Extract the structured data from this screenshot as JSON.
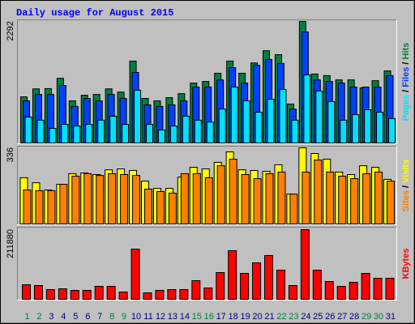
{
  "chart_data": [
    {
      "type": "bar",
      "title": "Daily usage for August 2015",
      "title_color": "#0000ff",
      "ylim": [
        0,
        2292
      ],
      "yticks": [
        2292
      ],
      "legend_separator": " / ",
      "series": [
        {
          "name": "Hits",
          "color": "#008040",
          "values": [
            870,
            1020,
            1025,
            1220,
            795,
            900,
            915,
            1020,
            960,
            1545,
            840,
            795,
            855,
            930,
            1130,
            1160,
            1315,
            1545,
            1315,
            1510,
            1740,
            1665,
            735,
            2292,
            1300,
            1270,
            1190,
            1190,
            1040,
            1175,
            1360
          ]
        },
        {
          "name": "Files",
          "color": "#0040ff",
          "values": [
            795,
            915,
            915,
            1085,
            690,
            840,
            795,
            915,
            840,
            1330,
            720,
            690,
            720,
            795,
            1055,
            1055,
            1190,
            1420,
            1130,
            1465,
            1575,
            1500,
            640,
            2095,
            1190,
            1160,
            1130,
            1055,
            1055,
            1055,
            1270
          ]
        },
        {
          "name": "Pages",
          "color": "#00e0ff",
          "values": [
            490,
            430,
            275,
            350,
            320,
            350,
            430,
            505,
            350,
            995,
            350,
            245,
            320,
            505,
            430,
            395,
            640,
            1055,
            795,
            580,
            825,
            1010,
            430,
            1285,
            980,
            780,
            430,
            535,
            625,
            580,
            460
          ]
        }
      ]
    },
    {
      "type": "bar",
      "ylim": [
        0,
        336
      ],
      "yticks": [
        336
      ],
      "legend_separator": " / ",
      "series": [
        {
          "name": "Visits",
          "color": "#ffff00",
          "values": [
            204,
            182,
            150,
            175,
            222,
            225,
            218,
            239,
            243,
            236,
            189,
            157,
            157,
            207,
            250,
            243,
            272,
            318,
            239,
            236,
            232,
            261,
            132,
            336,
            311,
            286,
            229,
            218,
            257,
            250,
            197
          ]
        },
        {
          "name": "Sites",
          "color": "#ff8000",
          "values": [
            150,
            147,
            147,
            175,
            211,
            222,
            214,
            222,
            218,
            214,
            154,
            143,
            136,
            222,
            222,
            204,
            257,
            286,
            218,
            200,
            222,
            229,
            132,
            229,
            282,
            229,
            211,
            200,
            222,
            229,
            189
          ]
        }
      ]
    },
    {
      "type": "bar",
      "ylim": [
        0,
        211880
      ],
      "yticks": [
        211880
      ],
      "categories": [
        "1",
        "2",
        "3",
        "4",
        "5",
        "6",
        "7",
        "8",
        "9",
        "10",
        "11",
        "12",
        "13",
        "14",
        "15",
        "16",
        "17",
        "18",
        "19",
        "20",
        "21",
        "22",
        "23",
        "24",
        "25",
        "26",
        "27",
        "28",
        "29",
        "30",
        "31"
      ],
      "category_colors": [
        "#008040",
        "#008040",
        "#000080",
        "#000080",
        "#000080",
        "#000080",
        "#000080",
        "#008040",
        "#008040",
        "#000080",
        "#000080",
        "#000080",
        "#000080",
        "#000080",
        "#008040",
        "#008040",
        "#000080",
        "#000080",
        "#000080",
        "#000080",
        "#000080",
        "#008040",
        "#008040",
        "#000080",
        "#000080",
        "#000080",
        "#000080",
        "#000080",
        "#008040",
        "#008040",
        "#000080"
      ],
      "series": [
        {
          "name": "KBytes",
          "color": "#ff0000",
          "values": [
            44350,
            41880,
            29560,
            32030,
            27100,
            27100,
            39420,
            39420,
            22170,
            152750,
            19710,
            27100,
            29560,
            29560,
            56670,
            34490,
            81300,
            147820,
            78840,
            110870,
            133040,
            88690,
            41880,
            211880,
            88690,
            54200,
            39420,
            51740,
            78840,
            64060,
            64060
          ]
        }
      ]
    }
  ]
}
